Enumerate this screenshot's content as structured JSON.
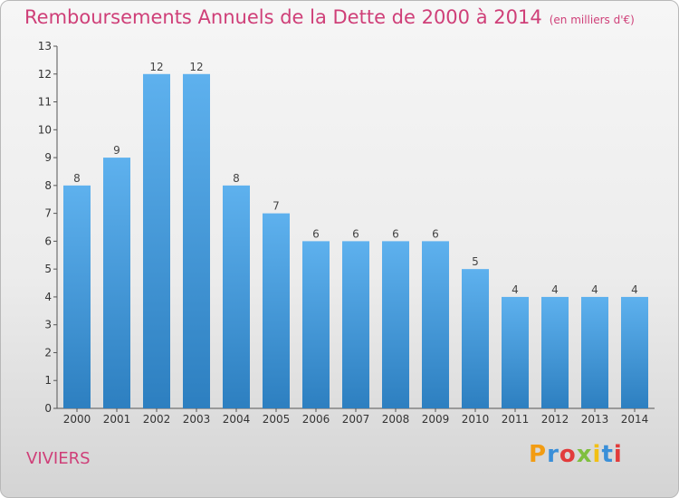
{
  "title": "Remboursements Annuels de la Dette de 2000 à 2014",
  "unit": "(en milliers d'€)",
  "city": "VIVIERS",
  "logo": {
    "text": "Proxiti",
    "colors": [
      "#f29c13",
      "#3a8fd8",
      "#e23b3b",
      "#7fbf3f",
      "#f2c014",
      "#3a8fd8",
      "#e23b3b"
    ]
  },
  "colors": {
    "title": "#cf3f78",
    "bar_light": "#5eb1ee",
    "bar_dark": "#2d7fc0"
  },
  "chart_data": {
    "type": "bar",
    "title": "Remboursements Annuels de la Dette de 2000 à 2014",
    "xlabel": "",
    "ylabel": "",
    "categories": [
      "2000",
      "2001",
      "2002",
      "2003",
      "2004",
      "2005",
      "2006",
      "2007",
      "2008",
      "2009",
      "2010",
      "2011",
      "2012",
      "2013",
      "2014"
    ],
    "values": [
      8,
      9,
      12,
      12,
      8,
      7,
      6,
      6,
      6,
      6,
      5,
      4,
      4,
      4,
      4
    ],
    "ylim": [
      0,
      13
    ],
    "yticks": [
      "0",
      "1",
      "2",
      "3",
      "4",
      "5",
      "6",
      "7",
      "8",
      "9",
      "10",
      "11",
      "12",
      "13"
    ],
    "grid": false,
    "legend": "none"
  }
}
